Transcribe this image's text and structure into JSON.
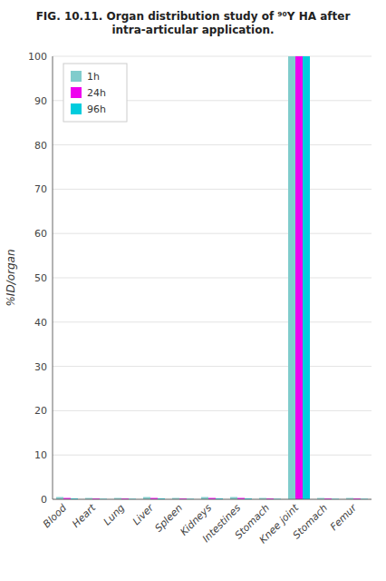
{
  "chart_data": {
    "type": "bar",
    "title": "FIG. 10.11.  Organ distribution study of ⁹⁰Y HA after intra-articular application.",
    "categories": [
      "Blood",
      "Heart",
      "Lung",
      "Liver",
      "Spleen",
      "Kidneys",
      "Intestines",
      "Stomach",
      "Knee joint",
      "Stomach",
      "Femur"
    ],
    "series": [
      {
        "name": "1h",
        "color": "#80CCCC",
        "values": [
          0.5,
          0.3,
          0.3,
          0.5,
          0.3,
          0.5,
          0.5,
          0.3,
          100,
          0.3,
          0.3
        ]
      },
      {
        "name": "24h",
        "color": "#EE00EE",
        "values": [
          0.3,
          0.2,
          0.2,
          0.3,
          0.2,
          0.3,
          0.3,
          0.2,
          100,
          0.2,
          0.2
        ]
      },
      {
        "name": "96h",
        "color": "#00CCDD",
        "values": [
          0.2,
          0.1,
          0.1,
          0.2,
          0.1,
          0.2,
          0.2,
          0.1,
          100,
          0.1,
          0.1
        ]
      }
    ],
    "ylabel": "%ID/organ",
    "ylim": [
      0,
      100
    ],
    "yticks": [
      0,
      10,
      20,
      30,
      40,
      50,
      60,
      70,
      80,
      90,
      100
    ],
    "grid": true,
    "legend": "upper left"
  }
}
